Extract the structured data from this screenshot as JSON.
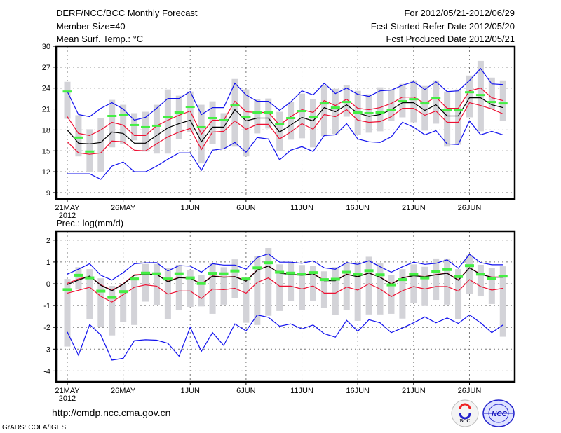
{
  "header": {
    "title": "DERF/NCC/BCC Monthly Forecast",
    "member_size": "Member Size=40",
    "variable": "Mean Surf. Temp.: °C",
    "period": "For 2012/05/21-2012/06/29",
    "started": "Fcst Started Refer Date 2012/05/20",
    "produced": "Fcst Produced Date 2012/05/21"
  },
  "footer": {
    "url": "http://cmdp.ncc.cma.gov.cn",
    "credit": "GrADS: COLA/IGES",
    "logo_bcc": "BCC",
    "logo_ncc": "NCC"
  },
  "colors": {
    "gray": "#d3d3d8",
    "green": "#44ee44",
    "black": "#000000",
    "red": "#ee1133",
    "blue": "#1111ee",
    "grid": "#777777"
  },
  "chart_data": [
    {
      "type": "line",
      "title": "Mean Surf. Temp.: °C",
      "ylim": [
        8.2,
        30
      ],
      "yticks": [
        30,
        27,
        24,
        21,
        18,
        15,
        12,
        9
      ],
      "xticks": [
        {
          "day": 0,
          "label": "21MAY"
        },
        {
          "day": 5,
          "label": "26MAY"
        },
        {
          "day": 11,
          "label": "1JUN"
        },
        {
          "day": 16,
          "label": "6JUN"
        },
        {
          "day": 21,
          "label": "11JUN"
        },
        {
          "day": 26,
          "label": "16JUN"
        },
        {
          "day": 31,
          "label": "21JUN"
        },
        {
          "day": 36,
          "label": "26JUN"
        }
      ],
      "year_label": "2012",
      "grid": true,
      "days": 40,
      "range_hi": [
        24.9,
        20.1,
        18.1,
        19.7,
        22.3,
        21.6,
        20.4,
        20.6,
        21.6,
        23.8,
        22.9,
        23.5,
        21.6,
        22.1,
        20.4,
        25.3,
        23.8,
        22.4,
        22.5,
        20.6,
        22.0,
        23.2,
        22.4,
        24.4,
        23.9,
        24.4,
        23.6,
        23.1,
        24.1,
        23.8,
        24.6,
        25.1,
        24.3,
        25.1,
        23.5,
        23.8,
        25.8,
        27.9,
        25.5,
        25.1
      ],
      "range_lo": [
        19.6,
        14.2,
        12.0,
        12.0,
        15.5,
        16.0,
        16.5,
        14.9,
        14.6,
        14.6,
        16.7,
        17.7,
        13.2,
        16.0,
        15.3,
        15.6,
        14.2,
        17.5,
        18.2,
        15.0,
        16.6,
        16.8,
        15.5,
        17.1,
        17.4,
        19.9,
        17.3,
        17.6,
        17.8,
        19.3,
        19.8,
        19.1,
        17.9,
        18.9,
        15.6,
        15.9,
        19.8,
        17.8,
        21.0,
        19.3
      ],
      "observed": [
        23.5,
        16.9,
        14.9,
        null,
        20.0,
        20.2,
        18.7,
        18.4,
        18.6,
        19.8,
        20.5,
        21.3,
        18.4,
        19.7,
        19.4,
        21.5,
        19.9,
        20.5,
        20.5,
        18.8,
        19.7,
        20.7,
        19.9,
        21.8,
        21.2,
        22.0,
        20.5,
        20.4,
        20.5,
        20.9,
        22.1,
        22.4,
        21.8,
        22.6,
        20.8,
        20.8,
        23.4,
        23.0,
        22.0,
        21.8
      ],
      "series": [
        {
          "name": "max",
          "color": "blue",
          "values": [
            23.5,
            20.2,
            19.9,
            21.1,
            21.9,
            21.0,
            19.4,
            19.8,
            21.1,
            22.5,
            22.5,
            23.5,
            20.2,
            21.2,
            21.2,
            24.7,
            23.0,
            22.1,
            22.1,
            20.8,
            22.0,
            23.6,
            23.0,
            24.7,
            23.2,
            24.0,
            23.1,
            22.8,
            23.6,
            23.7,
            24.4,
            24.9,
            23.8,
            24.9,
            23.5,
            23.6,
            25.1,
            26.8,
            24.6,
            24.5
          ]
        },
        {
          "name": "upper",
          "color": "red",
          "values": [
            19.9,
            17.5,
            17.2,
            18.0,
            19.1,
            18.7,
            17.2,
            17.2,
            18.6,
            19.4,
            20.1,
            20.7,
            17.4,
            19.4,
            19.4,
            22.1,
            20.6,
            20.5,
            20.5,
            18.7,
            19.9,
            20.9,
            20.5,
            22.2,
            21.5,
            22.4,
            21.1,
            20.9,
            21.2,
            21.8,
            22.7,
            22.7,
            21.8,
            22.7,
            21.1,
            21.1,
            23.6,
            24.0,
            22.6,
            22.2
          ]
        },
        {
          "name": "mean",
          "color": "black",
          "values": [
            18.0,
            16.1,
            16.0,
            16.2,
            17.7,
            17.5,
            16.1,
            16.1,
            17.2,
            18.3,
            18.9,
            19.4,
            16.3,
            18.4,
            18.4,
            20.9,
            19.3,
            19.7,
            19.7,
            17.7,
            18.7,
            19.8,
            19.3,
            21.2,
            20.6,
            21.6,
            20.4,
            19.95,
            20.2,
            20.9,
            21.9,
            21.9,
            20.8,
            21.6,
            20.0,
            20.0,
            22.6,
            22.6,
            21.6,
            21.2
          ]
        },
        {
          "name": "lower",
          "color": "red",
          "values": [
            16.3,
            14.7,
            14.5,
            14.7,
            16.4,
            16.3,
            15.1,
            15.0,
            16.0,
            17.0,
            17.7,
            18.2,
            15.2,
            17.7,
            17.8,
            19.3,
            18.1,
            18.8,
            18.8,
            16.7,
            17.7,
            18.9,
            18.1,
            20.2,
            19.9,
            20.9,
            19.4,
            19.1,
            19.2,
            19.9,
            21.1,
            21.1,
            20.1,
            20.7,
            19.1,
            19.1,
            21.9,
            21.5,
            21.0,
            20.3
          ]
        },
        {
          "name": "min",
          "color": "blue",
          "values": [
            11.7,
            11.7,
            11.7,
            10.9,
            12.8,
            13.4,
            12.0,
            12.0,
            12.8,
            13.8,
            14.7,
            14.7,
            12.2,
            15.1,
            15.3,
            16.2,
            14.8,
            16.9,
            16.7,
            13.7,
            15.1,
            15.6,
            14.9,
            17.2,
            17.3,
            18.9,
            16.7,
            16.3,
            16.2,
            17.0,
            19.1,
            18.4,
            17.3,
            17.9,
            16.0,
            15.9,
            19.3,
            17.3,
            17.8,
            17.3
          ]
        }
      ]
    },
    {
      "type": "line",
      "title": "Prec.: log(mm/d)",
      "ylim": [
        -4.5,
        2.4
      ],
      "yticks": [
        2,
        1,
        0,
        -1,
        -2,
        -3,
        -4
      ],
      "xticks": [
        {
          "day": 0,
          "label": "21MAY"
        },
        {
          "day": 5,
          "label": "26MAY"
        },
        {
          "day": 11,
          "label": "1JUN"
        },
        {
          "day": 16,
          "label": "6JUN"
        },
        {
          "day": 21,
          "label": "11JUN"
        },
        {
          "day": 26,
          "label": "16JUN"
        },
        {
          "day": 31,
          "label": "21JUN"
        },
        {
          "day": 36,
          "label": "26JUN"
        }
      ],
      "year_label": "2012",
      "grid": true,
      "days": 40,
      "range_hi": [
        0.22,
        0.76,
        0.67,
        0.25,
        -0.1,
        -0.02,
        0.3,
        0.91,
        0.91,
        0.71,
        0.87,
        0.62,
        0.41,
        0.94,
        0.76,
        1.12,
        0.25,
        1.28,
        1.64,
        0.89,
        0.97,
        0.86,
        0.81,
        0.57,
        0.76,
        0.94,
        0.99,
        1.24,
        0.94,
        0.41,
        0.67,
        0.89,
        0.78,
        1.16,
        1.16,
        0.67,
        1.32,
        0.87,
        0.71,
        0.8
      ],
      "range_lo": [
        -2.88,
        -0.26,
        -1.63,
        -1.98,
        -2.37,
        -1.75,
        -1.89,
        -0.82,
        -0.98,
        -1.63,
        -1.22,
        -1.06,
        -1.04,
        -1.38,
        -0.96,
        -0.66,
        -1.79,
        -1.89,
        -1.47,
        -1.25,
        -0.79,
        -1.22,
        -0.77,
        -1.11,
        -1.43,
        -1.22,
        -1.7,
        -1.41,
        -1.41,
        -1.38,
        -1.6,
        -0.9,
        -1.02,
        -0.74,
        -0.96,
        -1.63,
        -0.48,
        -0.58,
        -0.93,
        -2.43
      ],
      "observed": [
        -0.27,
        0.39,
        0.27,
        -0.34,
        -0.63,
        -0.36,
        0.22,
        0.49,
        0.46,
        0.22,
        0.46,
        0.27,
        0.01,
        0.48,
        0.46,
        0.59,
        0.22,
        0.73,
        0.96,
        0.53,
        0.49,
        0.44,
        0.51,
        0.19,
        0.21,
        0.53,
        0.43,
        0.6,
        0.41,
        -0.05,
        0.19,
        0.43,
        0.27,
        0.55,
        0.65,
        0.33,
        0.83,
        0.44,
        0.25,
        0.35
      ],
      "series": [
        {
          "name": "max",
          "color": "blue",
          "values": [
            0.44,
            0.67,
            0.92,
            0.39,
            0.17,
            0.51,
            0.92,
            0.96,
            0.97,
            0.59,
            0.83,
            0.81,
            0.53,
            0.92,
            0.86,
            0.86,
            0.67,
            1.21,
            1.37,
            0.99,
            0.99,
            0.94,
            1.05,
            0.73,
            0.67,
            0.97,
            0.89,
            1.05,
            0.78,
            0.53,
            0.78,
            0.99,
            0.89,
            0.94,
            1.1,
            0.71,
            1.35,
            0.97,
            0.87,
            0.87
          ]
        },
        {
          "name": "upper",
          "color": "red",
          "values": [
            0.02,
            0.22,
            0.35,
            -0.05,
            -0.3,
            0.0,
            0.41,
            0.44,
            0.44,
            0.11,
            0.3,
            0.26,
            0.0,
            0.36,
            0.31,
            0.33,
            0.14,
            0.63,
            0.82,
            0.49,
            0.44,
            0.4,
            0.47,
            0.16,
            0.16,
            0.44,
            0.33,
            0.5,
            0.31,
            0.0,
            0.28,
            0.38,
            0.33,
            0.42,
            0.49,
            0.18,
            0.74,
            0.44,
            0.31,
            0.31
          ]
        },
        {
          "name": "mean",
          "color": "black",
          "values": [
            -0.04,
            0.17,
            0.35,
            -0.07,
            -0.32,
            -0.02,
            0.39,
            0.43,
            0.43,
            0.09,
            0.28,
            0.25,
            -0.02,
            0.35,
            0.3,
            0.32,
            0.12,
            0.62,
            0.81,
            0.48,
            0.43,
            0.39,
            0.46,
            0.14,
            0.14,
            0.43,
            0.32,
            0.49,
            0.3,
            -0.02,
            0.27,
            0.37,
            0.32,
            0.41,
            0.48,
            0.16,
            0.73,
            0.43,
            0.3,
            0.3
          ]
        },
        {
          "name": "lower",
          "color": "red",
          "values": [
            -0.43,
            -0.3,
            -0.16,
            -0.58,
            -0.84,
            -0.5,
            -0.16,
            -0.05,
            -0.11,
            -0.48,
            -0.33,
            -0.33,
            -0.68,
            -0.24,
            -0.27,
            -0.21,
            -0.43,
            0.06,
            0.27,
            -0.11,
            -0.11,
            -0.24,
            -0.1,
            -0.43,
            -0.43,
            -0.15,
            -0.29,
            0.0,
            -0.24,
            -0.59,
            -0.32,
            -0.13,
            -0.24,
            -0.13,
            -0.13,
            -0.34,
            0.19,
            -0.13,
            -0.29,
            -0.21
          ]
        },
        {
          "name": "min",
          "color": "blue",
          "values": [
            -2.21,
            -3.28,
            -1.87,
            -2.35,
            -3.5,
            -3.42,
            -2.61,
            -2.57,
            -2.59,
            -2.73,
            -3.32,
            -2.0,
            -3.1,
            -2.24,
            -2.83,
            -1.84,
            -2.16,
            -1.43,
            -1.54,
            -1.95,
            -1.84,
            -2.07,
            -1.89,
            -2.29,
            -2.45,
            -1.68,
            -2.18,
            -1.65,
            -1.79,
            -2.24,
            -2.03,
            -1.79,
            -1.52,
            -1.79,
            -1.57,
            -1.82,
            -1.43,
            -1.79,
            -2.24,
            -1.89
          ]
        }
      ]
    }
  ]
}
